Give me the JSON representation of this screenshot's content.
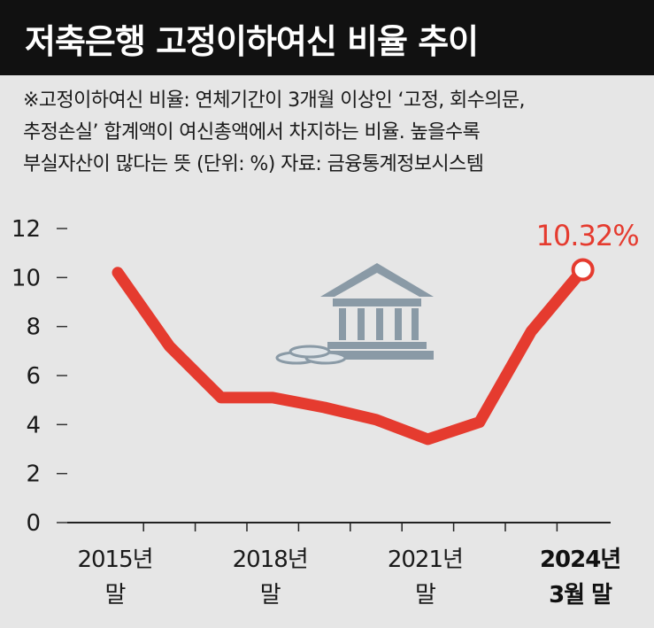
{
  "header": {
    "title": "저축은행 고정이하여신 비율 추이"
  },
  "note": {
    "line1": "※고정이하여신 비율: 연체기간이 3개월 이상인 ‘고정, 회수의문,",
    "line2": "추정손실’ 합계액이 여신총액에서 차지하는 비율. 높을수록",
    "line3": "부실자산이 많다는 뜻 (단위: %) 자료: 금융통계정보시스템"
  },
  "icons": {
    "bank": "bank-building-icon",
    "coins": "coin-stack-icon"
  },
  "colors": {
    "line": "#e53b2f",
    "background": "#e6e6e6",
    "header_bg": "#111111",
    "icon": "#8a9aa6"
  },
  "chart_data": {
    "type": "line",
    "title": "저축은행 고정이하여신 비율 추이",
    "xlabel": "",
    "ylabel": "",
    "ylim": [
      0,
      12
    ],
    "yticks": [
      "0",
      "2",
      "4",
      "6",
      "8",
      "10",
      "12"
    ],
    "xticks": [
      {
        "label": "2015년",
        "label2": "말",
        "bold": false
      },
      {
        "label": "2018년",
        "label2": "말",
        "bold": false
      },
      {
        "label": "2021년",
        "label2": "말",
        "bold": false
      },
      {
        "label": "2024년",
        "label2": "3월 말",
        "bold": true
      }
    ],
    "series": [
      {
        "points": [
          {
            "x": "2015년 말",
            "y": 10.2
          },
          {
            "x": "2016년 말",
            "y": 7.2
          },
          {
            "x": "2017년 말",
            "y": 5.1
          },
          {
            "x": "2018년 말",
            "y": 5.1
          },
          {
            "x": "2019년 말",
            "y": 4.7
          },
          {
            "x": "2020년 말",
            "y": 4.2
          },
          {
            "x": "2021년 말",
            "y": 3.4
          },
          {
            "x": "2022년 말",
            "y": 4.1
          },
          {
            "x": "2023년 말",
            "y": 7.8
          },
          {
            "x": "2024년 3월 말",
            "y": 10.32
          }
        ]
      }
    ],
    "data_label": "10.32%",
    "grid": false,
    "legend": "none"
  }
}
